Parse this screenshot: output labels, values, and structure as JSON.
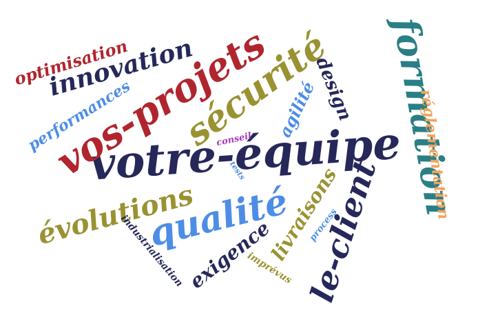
{
  "words": {
    "votre_equipe": "votre-équipe",
    "vos_projets": "vos-projets",
    "securite": "sécurité",
    "formation": "formation",
    "qualite": "qualité",
    "evolutions": "évolutions",
    "le_client": "le-client",
    "innovation": "innovation",
    "optimisation": "optimisation",
    "performances": "performances",
    "reglementation": "réglementation",
    "design": "design",
    "agilite": "agilité",
    "livraisons": "livraisons",
    "exigence": "exigence",
    "industrialisation": "industrialisation",
    "imprevus": "imprévus",
    "process": "process",
    "tests": "tests",
    "conseil": "conseil"
  },
  "colors": {
    "navy": "#26285a",
    "red": "#b0252e",
    "olive": "#9a9232",
    "blue": "#4d8de6",
    "teal": "#2a7f86",
    "orange": "#f2a45e",
    "purple": "#a238b8"
  }
}
